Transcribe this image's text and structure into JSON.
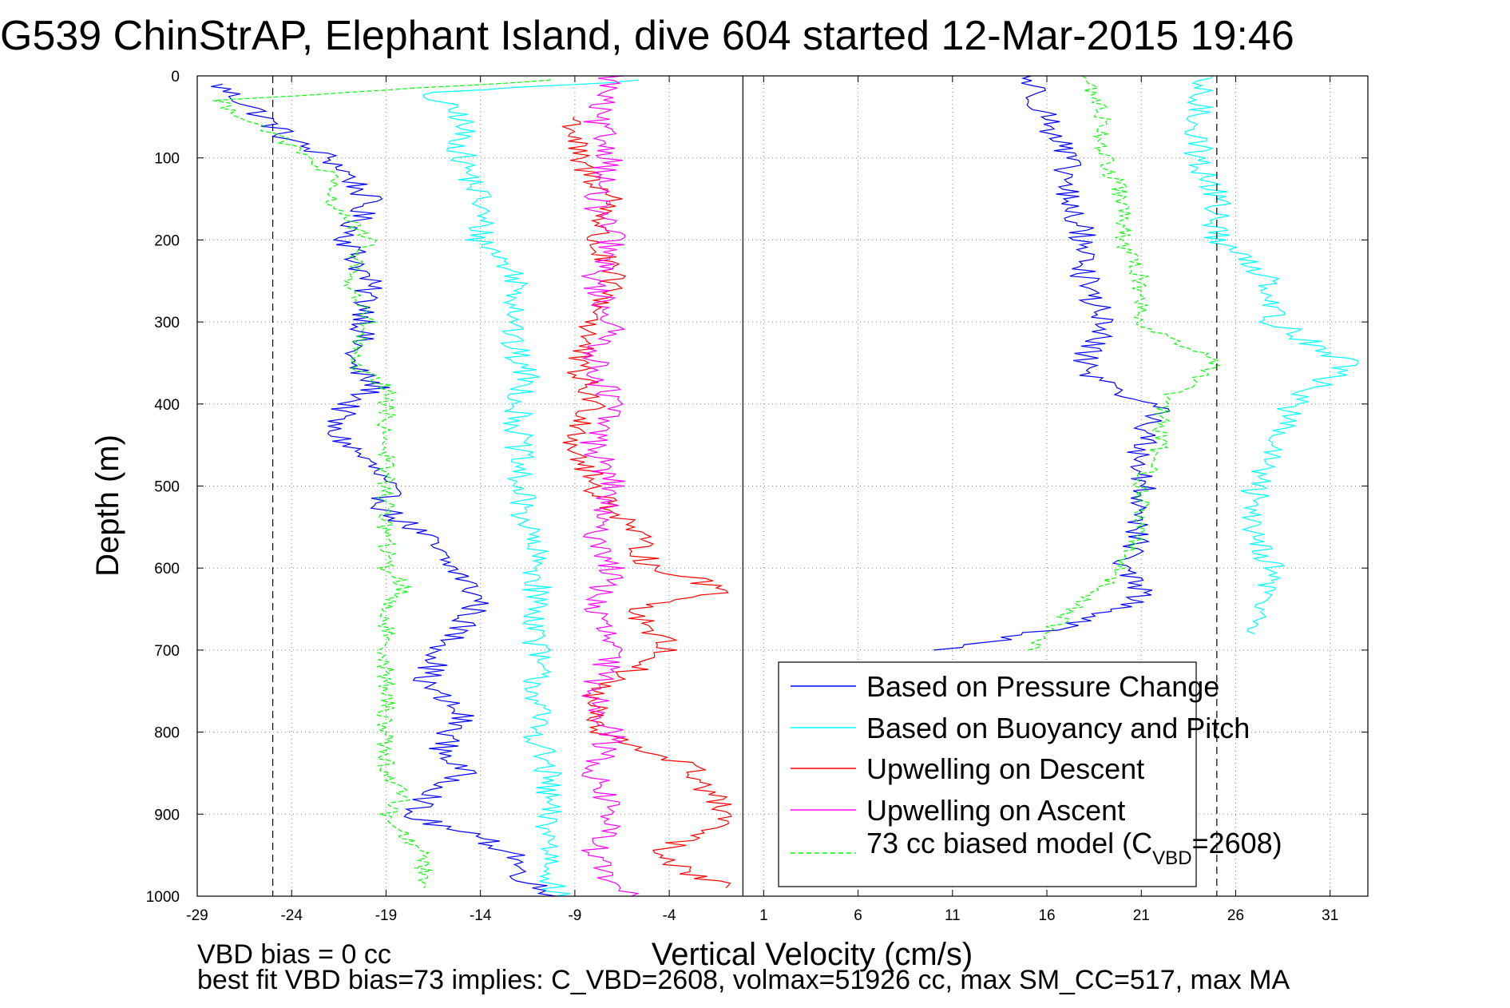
{
  "chart_data": {
    "type": "line",
    "title": "G539 ChinStrAP, Elephant Island, dive 604 started 12-Mar-2015 19:46",
    "xlabel": "Vertical Velocity (cm/s)",
    "ylabel": "Depth (m)",
    "xlim": [
      -29,
      33
    ],
    "ylim": [
      1000,
      0
    ],
    "y_reversed": true,
    "x_ticks": [
      -29,
      -24,
      -19,
      -14,
      -9,
      -4,
      1,
      6,
      11,
      16,
      21,
      26,
      31
    ],
    "x_tick_labels": [
      "-29",
      "-24",
      "-19",
      "-14",
      "-9",
      "-4",
      "1",
      "6",
      "11",
      "16",
      "21",
      "26",
      "31"
    ],
    "y_ticks": [
      0,
      100,
      200,
      300,
      400,
      500,
      600,
      700,
      800,
      900,
      1000
    ],
    "y_tick_labels": [
      "0",
      "100",
      "200",
      "300",
      "400",
      "500",
      "600",
      "700",
      "800",
      "900",
      "1000"
    ],
    "grid": true,
    "legend_position": "bottom-right",
    "reference_lines": {
      "dashed_x": [
        -25,
        25
      ],
      "solid_x": [
        -0.1
      ]
    },
    "notes": [
      "VBD bias = 0 cc",
      "best fit VBD bias=73 implies: C_VBD=2608, volmax=51926 cc, max SM_CC=517, max MA"
    ],
    "legend": {
      "entries": [
        "Based on Pressure Change",
        "Based on Buoyancy and Pitch",
        "Upwelling on Descent",
        "Upwelling on Ascent"
      ],
      "model_prefix": "73 cc biased model (C",
      "model_sub": "VBD",
      "model_suffix": "=2608)"
    },
    "series": [
      {
        "key": "pressure_descent",
        "color": "#0000ff",
        "style": "solid",
        "x": [
          -28,
          -26,
          -24,
          -22,
          -21,
          -20,
          -21,
          -20,
          -20,
          -21,
          -19.5,
          -21,
          -22,
          -20,
          -19,
          -19,
          -17,
          -16,
          -15,
          -14,
          -15,
          -16,
          -17,
          -15,
          -16,
          -15,
          -16,
          -18,
          -14,
          -12,
          -12,
          -11,
          -10
        ],
        "y": [
          10,
          40,
          80,
          100,
          120,
          150,
          200,
          250,
          300,
          350,
          380,
          400,
          430,
          470,
          500,
          530,
          560,
          590,
          610,
          640,
          670,
          700,
          740,
          780,
          820,
          850,
          870,
          900,
          930,
          950,
          970,
          990,
          1000
        ]
      },
      {
        "key": "buoyancy_descent",
        "color": "#00ffff",
        "style": "solid",
        "x": [
          -5,
          -17,
          -15,
          -15,
          -14,
          -14,
          -13,
          -12,
          -12,
          -12.5,
          -11.5,
          -12,
          -12,
          -12,
          -11.5,
          -11,
          -11,
          -11,
          -11,
          -11,
          -10.5,
          -10.5,
          -10
        ],
        "y": [
          5,
          20,
          50,
          100,
          150,
          200,
          220,
          250,
          300,
          320,
          370,
          400,
          450,
          500,
          550,
          600,
          650,
          700,
          750,
          800,
          850,
          900,
          1000
        ]
      },
      {
        "key": "upwelling_descent",
        "color": "#ff0000",
        "style": "solid",
        "x": [
          -9,
          -9,
          -7,
          -8,
          -7,
          -8,
          -9,
          -8,
          -9,
          -8,
          -6,
          -5,
          -3,
          -1,
          -6,
          -5,
          -4,
          -8,
          -8,
          -3,
          -1,
          -2,
          -5,
          -3,
          -1
        ],
        "y": [
          50,
          100,
          150,
          200,
          250,
          300,
          350,
          400,
          450,
          500,
          550,
          600,
          610,
          630,
          650,
          670,
          700,
          750,
          800,
          840,
          900,
          920,
          950,
          970,
          990
        ]
      },
      {
        "key": "upwelling_ascent",
        "color": "#ff00ff",
        "style": "solid",
        "x": [
          -7,
          -8,
          -7,
          -8,
          -7,
          -8,
          -7,
          -8,
          -7,
          -8,
          -7,
          -8,
          -7,
          -8,
          -7,
          -8,
          -7,
          -8,
          -7,
          -8,
          -7,
          -6
        ],
        "y": [
          0,
          50,
          100,
          150,
          200,
          250,
          300,
          350,
          400,
          450,
          500,
          550,
          600,
          650,
          700,
          750,
          800,
          850,
          900,
          950,
          990,
          1000
        ]
      },
      {
        "key": "biased_model_descent",
        "color": "#00ff00",
        "style": "dashed",
        "x": [
          -10,
          -28,
          -25,
          -22,
          -22,
          -20,
          -21,
          -20,
          -21,
          -19,
          -19,
          -19,
          -19,
          -19,
          -18,
          -19,
          -19,
          -19,
          -19,
          -19,
          -18,
          -19,
          -17,
          -17
        ],
        "y": [
          5,
          30,
          70,
          120,
          150,
          200,
          250,
          300,
          350,
          380,
          450,
          500,
          550,
          600,
          620,
          650,
          700,
          750,
          800,
          850,
          880,
          900,
          950,
          990
        ]
      },
      {
        "key": "pressure_ascent",
        "color": "#0000ff",
        "style": "solid",
        "x": [
          15,
          16,
          17,
          17,
          18,
          18,
          19,
          18,
          19,
          22,
          21,
          21,
          21,
          20,
          21,
          20,
          17,
          13,
          10
        ],
        "y": [
          0,
          50,
          100,
          150,
          200,
          250,
          300,
          350,
          380,
          400,
          450,
          500,
          550,
          600,
          630,
          650,
          670,
          690,
          700
        ]
      },
      {
        "key": "buoyancy_ascent",
        "color": "#00ffff",
        "style": "solid",
        "x": [
          24,
          24,
          24,
          25,
          25,
          28,
          28,
          32,
          29,
          28,
          27,
          27,
          28,
          27
        ],
        "y": [
          0,
          50,
          100,
          150,
          200,
          250,
          300,
          350,
          400,
          450,
          500,
          550,
          600,
          680
        ]
      },
      {
        "key": "biased_model_ascent",
        "color": "#00ff00",
        "style": "dashed",
        "x": [
          18,
          19,
          19,
          20,
          20,
          21,
          21,
          25,
          22,
          22,
          21,
          21,
          20,
          16,
          15
        ],
        "y": [
          0,
          50,
          100,
          150,
          200,
          250,
          300,
          350,
          400,
          450,
          500,
          550,
          600,
          680,
          700
        ]
      }
    ]
  }
}
